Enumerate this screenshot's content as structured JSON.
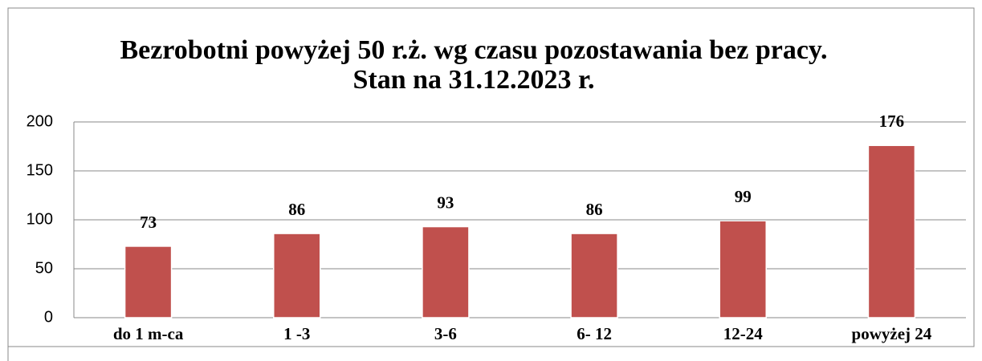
{
  "chart_data": {
    "type": "bar",
    "title": "Bezrobotni powyżej 50 r.ż. wg czasu pozostawania bez pracy. Stan na 31.12.2023 r.",
    "categories": [
      "do 1 m-ca",
      "1 -3",
      "3-6",
      "6- 12",
      "12-24",
      "powyżej 24"
    ],
    "values": [
      73,
      86,
      93,
      86,
      99,
      176
    ],
    "color": "#c0504d",
    "ylim": [
      0,
      200
    ],
    "yticks": [
      0,
      50,
      100,
      150,
      200
    ],
    "grid": true
  }
}
